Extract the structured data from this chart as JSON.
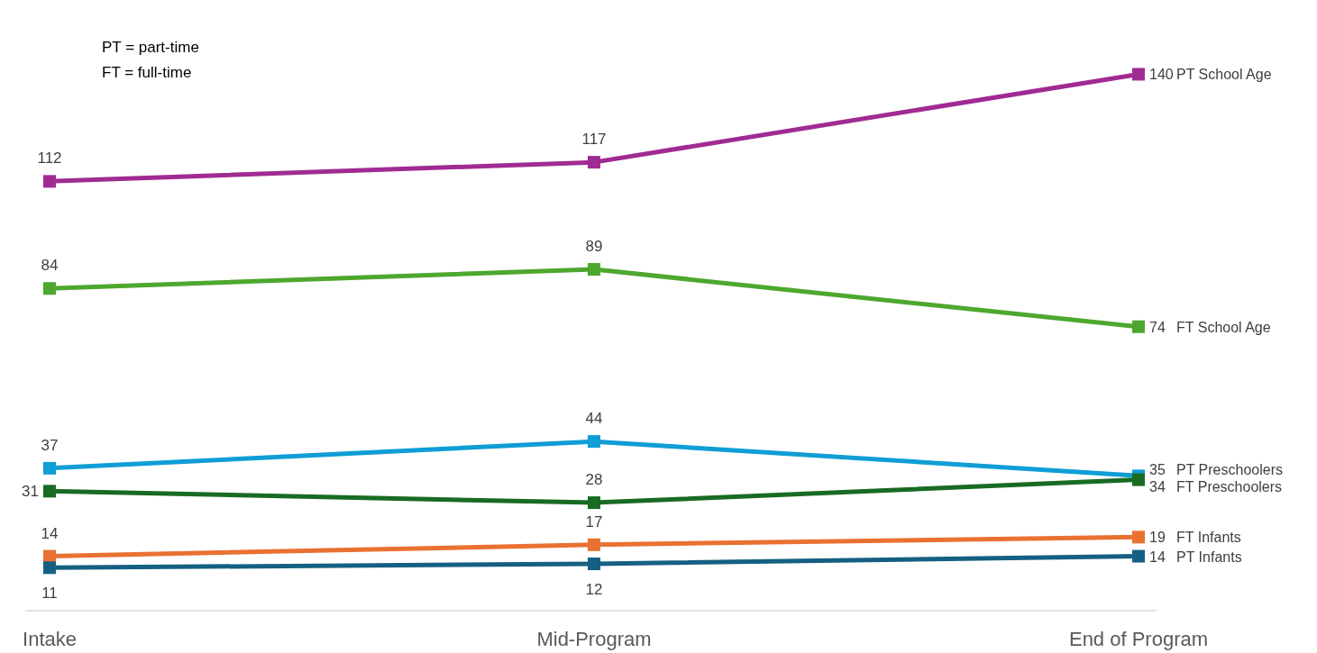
{
  "chart_data": {
    "type": "line",
    "categories": [
      "Intake",
      "Mid-Program",
      "End of Program"
    ],
    "marker": "square",
    "data_labels": true,
    "annotations": [
      "PT = part-time",
      "FT = full-time"
    ],
    "series": [
      {
        "name": "PT School Age",
        "color": "#a02b93",
        "values": [
          112,
          117,
          140
        ]
      },
      {
        "name": "FT School Age",
        "color": "#4ea72e",
        "values": [
          84,
          89,
          74
        ]
      },
      {
        "name": "PT Preschoolers",
        "color": "#0f9ed5",
        "values": [
          37,
          44,
          35
        ]
      },
      {
        "name": "FT Preschoolers",
        "color": "#196b24",
        "values": [
          31,
          28,
          34
        ]
      },
      {
        "name": "FT Infants",
        "color": "#e97132",
        "values": [
          14,
          17,
          19
        ]
      },
      {
        "name": "PT Infants",
        "color": "#156082",
        "values": [
          11,
          12,
          14
        ]
      }
    ]
  }
}
